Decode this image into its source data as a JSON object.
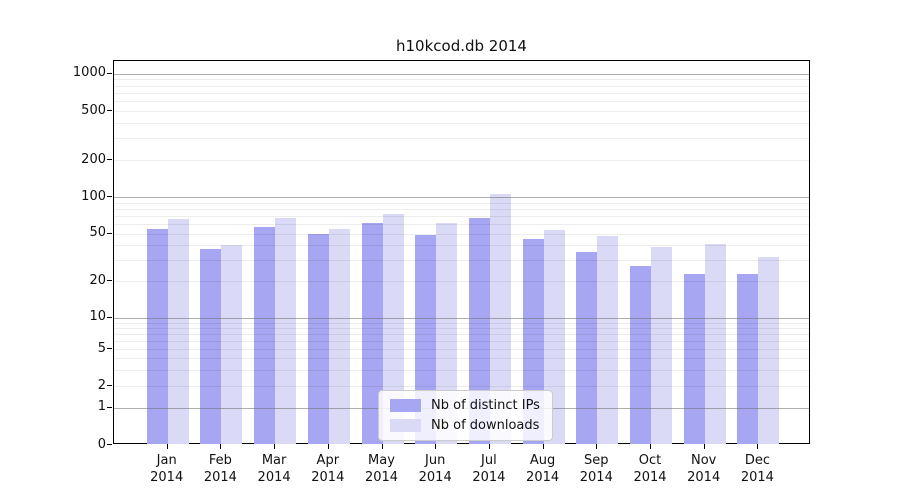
{
  "title": "h10kcod.db 2014",
  "legend": {
    "items": [
      {
        "label": "Nb of distinct IPs",
        "color": "#a6a6f2"
      },
      {
        "label": "Nb of downloads",
        "color": "#dadaf7"
      }
    ]
  },
  "chart_data": {
    "type": "bar",
    "title": "h10kcod.db 2014",
    "categories": [
      "Jan",
      "Feb",
      "Mar",
      "Apr",
      "May",
      "Jun",
      "Jul",
      "Aug",
      "Sep",
      "Oct",
      "Nov",
      "Dec"
    ],
    "year_label": "2014",
    "series": [
      {
        "name": "Nb of distinct IPs",
        "color": "#a6a6f2",
        "values": [
          55,
          37,
          57,
          50,
          61,
          49,
          67,
          45,
          35,
          27,
          23,
          23
        ]
      },
      {
        "name": "Nb of downloads",
        "color": "#dadaf7",
        "values": [
          66,
          40,
          67,
          55,
          73,
          61,
          105,
          54,
          48,
          39,
          41,
          32
        ]
      }
    ],
    "xlabel": "",
    "ylabel": "",
    "yscale": "log-like (0,1,2,5,10,20,50,100,200,500,1000)",
    "yticks": [
      0,
      1,
      2,
      5,
      10,
      20,
      50,
      100,
      200,
      500,
      1000
    ],
    "ylim": [
      0,
      1300
    ],
    "grid": true,
    "legend_position": "bottom-center-inside"
  }
}
